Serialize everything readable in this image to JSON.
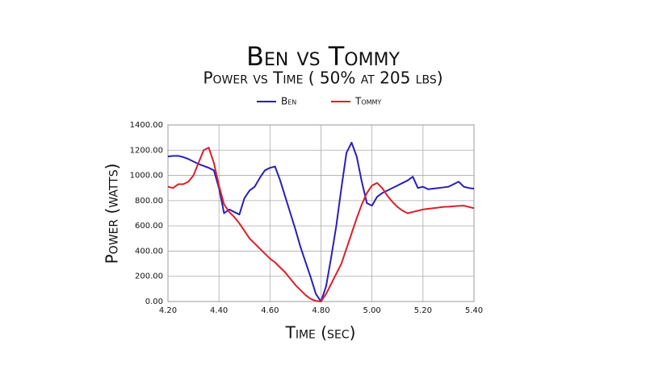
{
  "chart_data": {
    "type": "line",
    "title": "Ben vs Tommy",
    "subtitle": "Power vs Time ( 50% at 205 lbs)",
    "x_label": "Time (sec)",
    "y_label": "Power (watts)",
    "x": [
      4.2,
      4.22,
      4.24,
      4.26,
      4.28,
      4.3,
      4.32,
      4.34,
      4.36,
      4.38,
      4.4,
      4.42,
      4.44,
      4.46,
      4.48,
      4.5,
      4.52,
      4.54,
      4.56,
      4.58,
      4.6,
      4.62,
      4.64,
      4.66,
      4.68,
      4.7,
      4.72,
      4.74,
      4.76,
      4.78,
      4.8,
      4.82,
      4.84,
      4.86,
      4.88,
      4.9,
      4.92,
      4.94,
      4.96,
      4.98,
      5.0,
      5.02,
      5.04,
      5.06,
      5.08,
      5.1,
      5.12,
      5.14,
      5.16,
      5.18,
      5.2,
      5.22,
      5.24,
      5.26,
      5.28,
      5.3,
      5.32,
      5.34,
      5.36,
      5.38,
      5.4
    ],
    "series": [
      {
        "name": "Ben",
        "color": "#2a1fb8",
        "values": [
          1150,
          1155,
          1155,
          1145,
          1130,
          1110,
          1090,
          1075,
          1060,
          1040,
          900,
          700,
          730,
          710,
          690,
          820,
          880,
          910,
          980,
          1040,
          1060,
          1070,
          960,
          830,
          700,
          570,
          430,
          310,
          190,
          60,
          0,
          120,
          350,
          600,
          900,
          1180,
          1260,
          1150,
          950,
          780,
          760,
          830,
          860,
          880,
          900,
          920,
          940,
          960,
          990,
          900,
          910,
          890,
          895,
          900,
          905,
          910,
          930,
          950,
          910,
          900,
          895
        ]
      },
      {
        "name": "Tommy",
        "color": "#d8202a",
        "values": [
          910,
          900,
          930,
          930,
          950,
          1000,
          1100,
          1200,
          1220,
          1100,
          920,
          770,
          710,
          670,
          620,
          560,
          500,
          460,
          420,
          380,
          340,
          310,
          270,
          230,
          180,
          130,
          90,
          50,
          20,
          5,
          0,
          60,
          140,
          220,
          300,
          420,
          540,
          660,
          770,
          860,
          920,
          940,
          900,
          840,
          790,
          750,
          720,
          700,
          710,
          720,
          730,
          735,
          740,
          745,
          750,
          752,
          755,
          758,
          760,
          750,
          740
        ]
      }
    ],
    "xlim": [
      4.2,
      5.4
    ],
    "xticks": [
      {
        "value": 4.2,
        "label": "4.20"
      },
      {
        "value": 4.4,
        "label": "4.40"
      },
      {
        "value": 4.6,
        "label": "4.60"
      },
      {
        "value": 4.8,
        "label": "4.80"
      },
      {
        "value": 5.0,
        "label": "5.00"
      },
      {
        "value": 5.2,
        "label": "5.20"
      },
      {
        "value": 5.4,
        "label": "5.40"
      }
    ],
    "ylim": [
      0,
      1400
    ],
    "yticks": [
      {
        "value": 0,
        "label": "0.00"
      },
      {
        "value": 200,
        "label": "200.00"
      },
      {
        "value": 400,
        "label": "400.00"
      },
      {
        "value": 600,
        "label": "600.00"
      },
      {
        "value": 800,
        "label": "800.00"
      },
      {
        "value": 1000,
        "label": "1000.00"
      },
      {
        "value": 1200,
        "label": "1200.00"
      },
      {
        "value": 1400,
        "label": "1400.00"
      }
    ],
    "grid": true
  }
}
